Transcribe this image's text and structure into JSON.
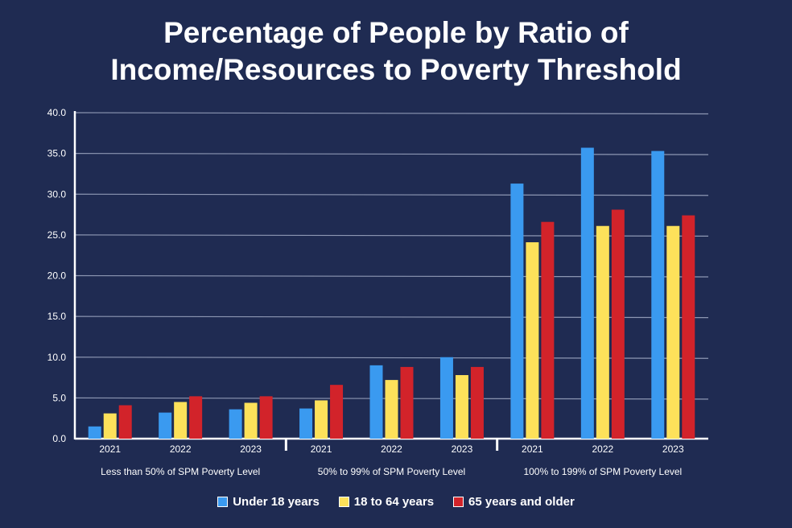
{
  "title_line1": "Percentage of People by Ratio of",
  "title_line2": "Income/Resources to Poverty Threshold",
  "colors": {
    "background": "#1f2b52",
    "under18": "#3a9af0",
    "age18to64": "#fde15a",
    "age65plus": "#d2232a"
  },
  "chart_data": {
    "type": "bar",
    "title": "Percentage of People by Ratio of Income/Resources to Poverty Threshold",
    "ylim": [
      0,
      40
    ],
    "yticks": [
      "0.0",
      "5.0",
      "10.0",
      "15.0",
      "20.0",
      "25.0",
      "30.0",
      "35.0",
      "40.0"
    ],
    "grid": true,
    "legend_position": "bottom-center",
    "groups": [
      {
        "label": "Less than 50% of SPM Poverty Level",
        "years": [
          "2021",
          "2022",
          "2023"
        ]
      },
      {
        "label": "50% to 99% of SPM Poverty Level",
        "years": [
          "2021",
          "2022",
          "2023"
        ]
      },
      {
        "label": "100% to 199% of SPM Poverty Level",
        "years": [
          "2021",
          "2022",
          "2023"
        ]
      }
    ],
    "series": [
      {
        "name": "Under 18 years",
        "color": "#3a9af0",
        "values": [
          1.5,
          3.2,
          3.6,
          3.7,
          9.0,
          10.0,
          31.3,
          35.7,
          35.3
        ]
      },
      {
        "name": "18 to 64 years",
        "color": "#fde15a",
        "values": [
          3.1,
          4.5,
          4.4,
          4.7,
          7.2,
          7.8,
          24.1,
          26.1,
          26.1
        ]
      },
      {
        "name": "65 years and older",
        "color": "#d2232a",
        "values": [
          4.1,
          5.2,
          5.2,
          6.6,
          8.8,
          8.8,
          26.6,
          28.1,
          27.4
        ]
      }
    ]
  }
}
